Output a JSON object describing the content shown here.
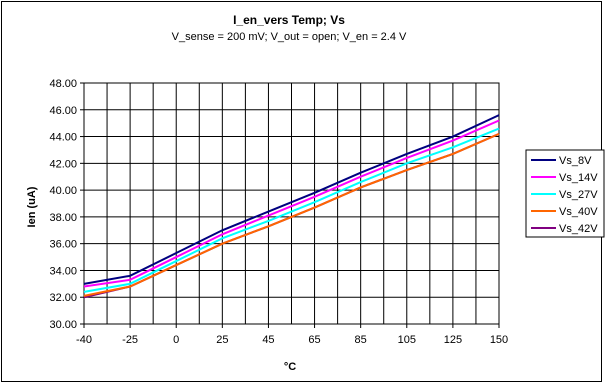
{
  "chart_data": {
    "type": "line",
    "title": "I_en_vers Temp; Vs",
    "subtitle": "V_sense = 200 mV; V_out = open; V_en = 2.4 V",
    "xlabel": "°C",
    "ylabel": "Ien (uA)",
    "x": [
      -40,
      -25,
      0,
      25,
      45,
      65,
      85,
      105,
      125,
      150
    ],
    "x_tick_labels": [
      "-40",
      "-25",
      "0",
      "25",
      "45",
      "65",
      "85",
      "105",
      "125",
      "150"
    ],
    "xlim": [
      -40,
      150
    ],
    "ylim": [
      30,
      48
    ],
    "y_ticks": [
      30,
      32,
      34,
      36,
      38,
      40,
      42,
      44,
      46,
      48
    ],
    "y_tick_labels": [
      "30.00",
      "32.00",
      "34.00",
      "36.00",
      "38.00",
      "40.00",
      "42.00",
      "44.00",
      "46.00",
      "48.00"
    ],
    "grid": true,
    "legend_position": "right",
    "series": [
      {
        "name": "Vs_8V",
        "color": "#000080",
        "values": [
          33.0,
          33.6,
          35.3,
          37.0,
          38.4,
          39.8,
          41.3,
          42.7,
          44.0,
          45.6
        ]
      },
      {
        "name": "Vs_14V",
        "color": "#ff00ff",
        "values": [
          32.8,
          33.3,
          35.0,
          36.7,
          38.1,
          39.5,
          41.0,
          42.4,
          43.7,
          45.2
        ]
      },
      {
        "name": "Vs_27V",
        "color": "#00ffff",
        "values": [
          32.4,
          33.0,
          34.7,
          36.4,
          37.7,
          39.1,
          40.6,
          42.0,
          43.2,
          44.6
        ]
      },
      {
        "name": "Vs_40V",
        "color": "#ff6600",
        "values": [
          32.1,
          32.8,
          34.4,
          36.0,
          37.3,
          38.7,
          40.2,
          41.5,
          42.7,
          44.2
        ]
      },
      {
        "name": "Vs_42V",
        "color": "#800080",
        "values": [
          32.0,
          32.8,
          34.4,
          36.0,
          37.3,
          38.7,
          40.2,
          41.5,
          42.7,
          44.2
        ]
      }
    ]
  }
}
